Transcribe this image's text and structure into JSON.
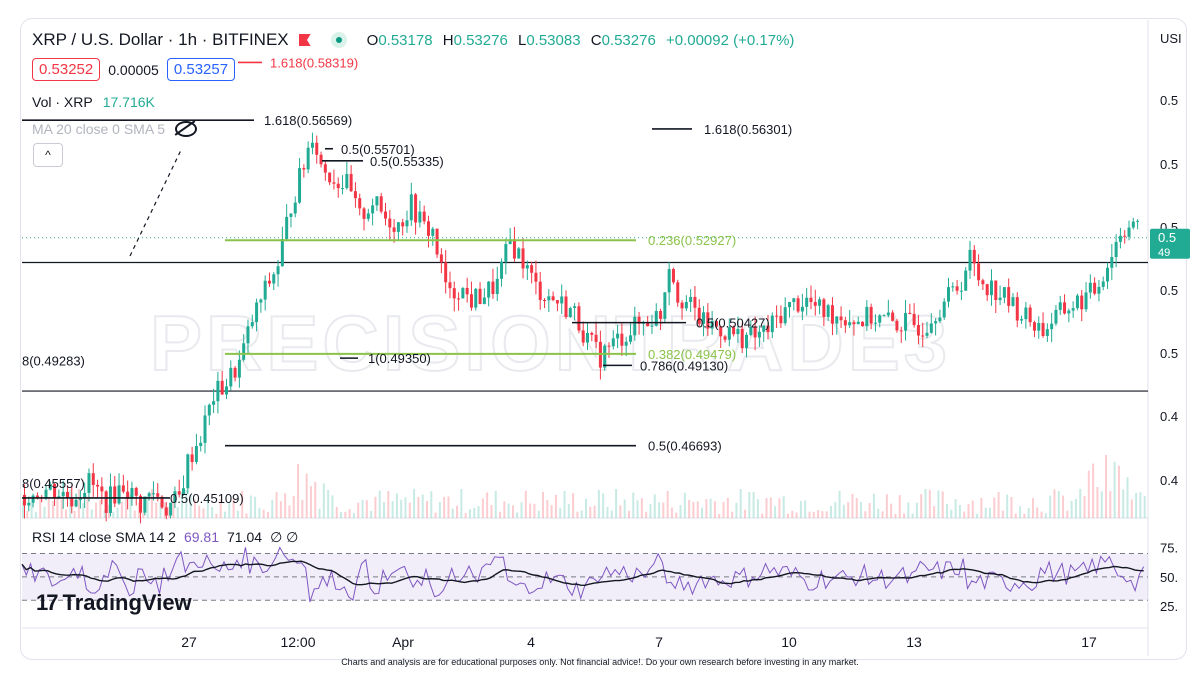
{
  "header": {
    "symbol": "XRP / U.S. Dollar · 1h · BITFINEX",
    "open_label": "O",
    "open": "0.53178",
    "high_label": "H",
    "high": "0.53276",
    "low_label": "L",
    "low": "0.53083",
    "close_label": "C",
    "close": "0.53276",
    "change": "+0.00092 (+0.17%)"
  },
  "bid_ask": {
    "sell": "0.53252",
    "spread": "0.00005",
    "buy": "0.53257"
  },
  "volume_indicator": {
    "label": "Vol · XRP",
    "value": "17.716K"
  },
  "ma_indicator": {
    "label": "MA 20 close 0 SMA 5"
  },
  "collapse_label": "^",
  "rsi_indicator": {
    "label": "RSI 14 close SMA 14 2",
    "rsi": "69.81",
    "sma": "71.04",
    "extra": "∅ ∅"
  },
  "logo": {
    "mark": "17",
    "text": "TradingView"
  },
  "watermark": "PRECISIONTRADE3",
  "axis_unit": "USI",
  "disclaimer": "Charts and analysis are for educational purposes only. Not financial advice!. Do your own research before investing in any market.",
  "colors": {
    "up": "#22ab94",
    "down": "#f23645",
    "fib": "#8bc34a",
    "rsi": "#7e57c2",
    "level": "#131722"
  },
  "chart_data": {
    "type": "candlestick",
    "x_ticks": [
      "27",
      "12:00",
      "Apr",
      "4",
      "7",
      "10",
      "13",
      "17"
    ],
    "y_ticks": [
      "0.5",
      "0.5",
      "0.5",
      "0.5",
      "0.5",
      "0.4",
      "0.4"
    ],
    "current_price": {
      "label": "0.5",
      "sub": "49"
    },
    "price_path": [
      [
        0,
        0.452
      ],
      [
        6,
        0.454
      ],
      [
        11,
        0.451
      ],
      [
        15,
        0.456
      ],
      [
        19,
        0.45
      ],
      [
        23,
        0.455
      ],
      [
        27,
        0.449
      ],
      [
        30,
        0.453
      ],
      [
        33,
        0.448
      ],
      [
        36,
        0.451
      ],
      [
        38,
        0.462
      ],
      [
        41,
        0.47
      ],
      [
        44,
        0.482
      ],
      [
        47,
        0.486
      ],
      [
        50,
        0.492
      ],
      [
        53,
        0.505
      ],
      [
        56,
        0.514
      ],
      [
        59,
        0.522
      ],
      [
        62,
        0.54
      ],
      [
        65,
        0.552
      ],
      [
        67,
        0.562
      ],
      [
        69,
        0.552
      ],
      [
        72,
        0.548
      ],
      [
        75,
        0.546
      ],
      [
        78,
        0.536
      ],
      [
        81,
        0.541
      ],
      [
        84,
        0.536
      ],
      [
        87,
        0.534
      ],
      [
        90,
        0.54
      ],
      [
        93,
        0.533
      ],
      [
        95,
        0.532
      ],
      [
        97,
        0.52
      ],
      [
        99,
        0.512
      ],
      [
        101,
        0.515
      ],
      [
        104,
        0.511
      ],
      [
        107,
        0.513
      ],
      [
        110,
        0.516
      ],
      [
        113,
        0.529
      ],
      [
        116,
        0.523
      ],
      [
        119,
        0.515
      ],
      [
        122,
        0.512
      ],
      [
        125,
        0.51
      ],
      [
        128,
        0.507
      ],
      [
        131,
        0.499
      ],
      [
        134,
        0.494
      ],
      [
        136,
        0.497
      ],
      [
        139,
        0.5
      ],
      [
        142,
        0.503
      ],
      [
        145,
        0.505
      ],
      [
        148,
        0.507
      ],
      [
        150,
        0.523
      ],
      [
        152,
        0.513
      ],
      [
        155,
        0.509
      ],
      [
        158,
        0.504
      ],
      [
        161,
        0.503
      ],
      [
        164,
        0.501
      ],
      [
        167,
        0.5
      ],
      [
        170,
        0.5
      ],
      [
        173,
        0.502
      ],
      [
        176,
        0.507
      ],
      [
        179,
        0.51
      ],
      [
        182,
        0.511
      ],
      [
        185,
        0.508
      ],
      [
        188,
        0.507
      ],
      [
        191,
        0.506
      ],
      [
        194,
        0.505
      ],
      [
        197,
        0.506
      ],
      [
        200,
        0.505
      ],
      [
        203,
        0.504
      ],
      [
        206,
        0.504
      ],
      [
        209,
        0.503
      ],
      [
        212,
        0.508
      ],
      [
        215,
        0.512
      ],
      [
        218,
        0.517
      ],
      [
        220,
        0.524
      ],
      [
        222,
        0.518
      ],
      [
        225,
        0.515
      ],
      [
        228,
        0.512
      ],
      [
        231,
        0.508
      ],
      [
        234,
        0.505
      ],
      [
        237,
        0.502
      ],
      [
        240,
        0.506
      ],
      [
        243,
        0.509
      ],
      [
        246,
        0.511
      ],
      [
        249,
        0.514
      ],
      [
        252,
        0.522
      ],
      [
        255,
        0.532
      ],
      [
        258,
        0.535
      ],
      [
        260,
        0.53
      ]
    ],
    "fib_levels": [
      {
        "label": "0.236(0.52927)",
        "value": 0.52927,
        "color": "#8bc34a"
      },
      {
        "label": "0.382(0.49479)",
        "value": 0.49479,
        "color": "#8bc34a"
      },
      {
        "label": "1.618(0.56569)",
        "value": 0.56569,
        "color": "#131722"
      },
      {
        "label": "1.618(0.56301)",
        "value": 0.56301,
        "color": "#131722"
      },
      {
        "label": "1.618(0.58319)",
        "value": 0.58319,
        "color": "#f23645"
      },
      {
        "label": "0.5(0.55701)",
        "value": 0.55701,
        "color": "#131722"
      },
      {
        "label": "0.5(0.55335)",
        "value": 0.55335,
        "color": "#131722"
      },
      {
        "label": "0.5(0.50427)",
        "value": 0.50427,
        "color": "#131722"
      },
      {
        "label": "1(0.49350)",
        "value": 0.4935,
        "color": "#131722"
      },
      {
        "label": "0.786(0.49130)",
        "value": 0.4913,
        "color": "#131722"
      },
      {
        "label": "0.5(0.46693)",
        "value": 0.46693,
        "color": "#131722"
      },
      {
        "label": "0.5(0.45109)",
        "value": 0.45109,
        "color": "#131722"
      },
      {
        "label": "8(0.49283)",
        "value": 0.49283,
        "color": "#131722"
      },
      {
        "label": "8(0.45557)",
        "value": 0.45557,
        "color": "#131722"
      }
    ],
    "horizontal_levels": [
      0.5225,
      0.4835
    ],
    "rsi_ticks": [
      "75.",
      "50.",
      "25."
    ]
  }
}
